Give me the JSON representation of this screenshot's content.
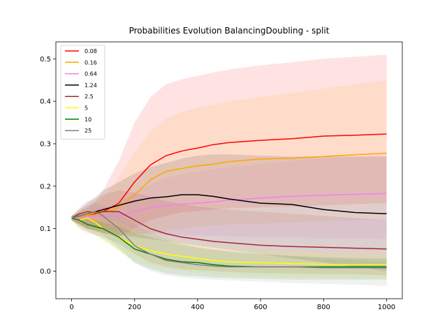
{
  "chart_data": {
    "type": "line",
    "title": "Probabilities Evolution BalancingDoubling  - split",
    "xlabel": "",
    "ylabel": "",
    "xlim": [
      -50,
      1050
    ],
    "ylim": [
      -0.065,
      0.54
    ],
    "x_ticks": [
      0,
      200,
      400,
      600,
      800,
      1000
    ],
    "y_ticks": [
      0.0,
      0.1,
      0.2,
      0.3,
      0.4,
      0.5
    ],
    "x_tick_labels": [
      "0",
      "200",
      "400",
      "600",
      "800",
      "1000"
    ],
    "y_tick_labels": [
      "0.0",
      "0.1",
      "0.2",
      "0.3",
      "0.4",
      "0.5"
    ],
    "grid": false,
    "legend_position": "top-left",
    "x": [
      0,
      25,
      50,
      75,
      100,
      150,
      200,
      250,
      300,
      350,
      400,
      450,
      500,
      600,
      700,
      800,
      900,
      1000
    ],
    "series": [
      {
        "name": "0.08",
        "color": "#ff0000",
        "values": [
          0.125,
          0.13,
          0.13,
          0.135,
          0.14,
          0.16,
          0.21,
          0.25,
          0.272,
          0.283,
          0.29,
          0.298,
          0.303,
          0.308,
          0.312,
          0.318,
          0.32,
          0.323
        ],
        "upper": [
          0.13,
          0.14,
          0.15,
          0.165,
          0.19,
          0.26,
          0.35,
          0.41,
          0.44,
          0.452,
          0.46,
          0.468,
          0.475,
          0.485,
          0.492,
          0.5,
          0.505,
          0.51
        ],
        "lower": [
          0.12,
          0.11,
          0.1,
          0.095,
          0.09,
          0.08,
          0.1,
          0.12,
          0.13,
          0.138,
          0.142,
          0.145,
          0.148,
          0.15,
          0.152,
          0.155,
          0.158,
          0.16
        ]
      },
      {
        "name": "0.16",
        "color": "#ffa500",
        "values": [
          0.125,
          0.13,
          0.13,
          0.133,
          0.138,
          0.15,
          0.18,
          0.215,
          0.235,
          0.242,
          0.248,
          0.252,
          0.258,
          0.264,
          0.266,
          0.27,
          0.274,
          0.278
        ],
        "upper": [
          0.13,
          0.14,
          0.15,
          0.16,
          0.175,
          0.22,
          0.28,
          0.33,
          0.36,
          0.375,
          0.385,
          0.392,
          0.4,
          0.41,
          0.42,
          0.43,
          0.44,
          0.45
        ],
        "lower": [
          0.12,
          0.11,
          0.1,
          0.098,
          0.095,
          0.09,
          0.085,
          0.09,
          0.095,
          0.1,
          0.105,
          0.108,
          0.11,
          0.112,
          0.115,
          0.118,
          0.12,
          0.12
        ]
      },
      {
        "name": "0.64",
        "color": "#ee82ee",
        "values": [
          0.125,
          0.125,
          0.128,
          0.13,
          0.128,
          0.13,
          0.14,
          0.15,
          0.155,
          0.158,
          0.16,
          0.163,
          0.167,
          0.172,
          0.176,
          0.179,
          0.181,
          0.183
        ],
        "upper": [
          0.13,
          0.135,
          0.14,
          0.145,
          0.15,
          0.16,
          0.185,
          0.205,
          0.22,
          0.228,
          0.235,
          0.24,
          0.245,
          0.252,
          0.26,
          0.265,
          0.27,
          0.275
        ],
        "lower": [
          0.12,
          0.112,
          0.108,
          0.104,
          0.1,
          0.095,
          0.09,
          0.088,
          0.086,
          0.085,
          0.084,
          0.083,
          0.082,
          0.08,
          0.079,
          0.078,
          0.077,
          0.076
        ]
      },
      {
        "name": "1.24",
        "color": "#000000",
        "values": [
          0.125,
          0.13,
          0.135,
          0.14,
          0.145,
          0.155,
          0.165,
          0.172,
          0.175,
          0.18,
          0.18,
          0.176,
          0.17,
          0.16,
          0.157,
          0.145,
          0.138,
          0.135
        ],
        "upper": [
          0.13,
          0.145,
          0.16,
          0.175,
          0.19,
          0.21,
          0.23,
          0.245,
          0.255,
          0.265,
          0.272,
          0.275,
          0.275,
          0.272,
          0.27,
          0.27,
          0.27,
          0.27
        ],
        "lower": [
          0.12,
          0.11,
          0.1,
          0.095,
          0.09,
          0.085,
          0.08,
          0.075,
          0.07,
          0.065,
          0.06,
          0.055,
          0.05,
          0.04,
          0.03,
          0.02,
          0.01,
          0.0
        ]
      },
      {
        "name": "2.5",
        "color": "#a52a2a",
        "values": [
          0.125,
          0.135,
          0.14,
          0.138,
          0.14,
          0.14,
          0.12,
          0.1,
          0.088,
          0.08,
          0.075,
          0.07,
          0.067,
          0.061,
          0.058,
          0.056,
          0.054,
          0.052
        ],
        "upper": [
          0.13,
          0.15,
          0.165,
          0.17,
          0.18,
          0.19,
          0.185,
          0.175,
          0.165,
          0.158,
          0.152,
          0.148,
          0.145,
          0.14,
          0.135,
          0.13,
          0.125,
          0.12
        ],
        "lower": [
          0.12,
          0.1,
          0.09,
          0.085,
          0.08,
          0.065,
          0.04,
          0.02,
          0.01,
          0.005,
          0.002,
          0.0,
          -0.002,
          -0.005,
          -0.006,
          -0.007,
          -0.008,
          -0.01
        ]
      },
      {
        "name": "5",
        "color": "#ffff00",
        "values": [
          0.125,
          0.12,
          0.125,
          0.115,
          0.1,
          0.08,
          0.06,
          0.048,
          0.04,
          0.035,
          0.03,
          0.025,
          0.022,
          0.02,
          0.018,
          0.016,
          0.015,
          0.015
        ],
        "upper": [
          0.13,
          0.14,
          0.145,
          0.14,
          0.13,
          0.115,
          0.1,
          0.088,
          0.078,
          0.07,
          0.065,
          0.06,
          0.056,
          0.05,
          0.047,
          0.045,
          0.043,
          0.042
        ],
        "lower": [
          0.12,
          0.1,
          0.095,
          0.085,
          0.07,
          0.045,
          0.025,
          0.012,
          0.005,
          0.0,
          -0.004,
          -0.008,
          -0.01,
          -0.013,
          -0.015,
          -0.016,
          -0.017,
          -0.018
        ]
      },
      {
        "name": "10",
        "color": "#008000",
        "values": [
          0.125,
          0.12,
          0.11,
          0.105,
          0.1,
          0.08,
          0.052,
          0.04,
          0.028,
          0.022,
          0.02,
          0.015,
          0.012,
          0.01,
          0.01,
          0.01,
          0.01,
          0.01
        ],
        "upper": [
          0.13,
          0.13,
          0.125,
          0.12,
          0.115,
          0.105,
          0.09,
          0.08,
          0.07,
          0.062,
          0.055,
          0.05,
          0.046,
          0.04,
          0.036,
          0.033,
          0.031,
          0.03
        ],
        "lower": [
          0.12,
          0.105,
          0.095,
          0.085,
          0.075,
          0.05,
          0.02,
          0.005,
          -0.005,
          -0.01,
          -0.012,
          -0.015,
          -0.016,
          -0.018,
          -0.02,
          -0.02,
          -0.02,
          -0.02
        ]
      },
      {
        "name": "25",
        "color": "#808080",
        "values": [
          0.125,
          0.13,
          0.135,
          0.14,
          0.13,
          0.1,
          0.06,
          0.04,
          0.025,
          0.02,
          0.015,
          0.012,
          0.01,
          0.01,
          0.01,
          0.008,
          0.008,
          0.008
        ],
        "upper": [
          0.13,
          0.145,
          0.155,
          0.16,
          0.155,
          0.135,
          0.11,
          0.09,
          0.075,
          0.065,
          0.058,
          0.052,
          0.048,
          0.04,
          0.035,
          0.03,
          0.026,
          0.022
        ],
        "lower": [
          0.12,
          0.11,
          0.1,
          0.095,
          0.085,
          0.055,
          0.02,
          0.0,
          -0.01,
          -0.015,
          -0.018,
          -0.02,
          -0.022,
          -0.025,
          -0.028,
          -0.03,
          -0.032,
          -0.035
        ]
      }
    ]
  }
}
